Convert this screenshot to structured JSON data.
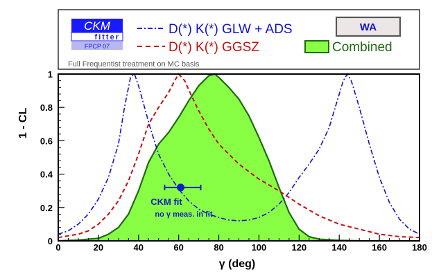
{
  "logo": {
    "line1": "CKM",
    "line2": "fitter",
    "line3": "FPCP 07"
  },
  "legend": {
    "glw_ads": "D(*) K(*) GLW + ADS",
    "ggsz": "D(*) K(*) GGSZ",
    "combined": "Combined",
    "wa_button": "WA"
  },
  "note": "Full Frequentist treatment on MC basis",
  "annotation": {
    "fit_label": "CKM fit",
    "fit_sublabel": "no γ meas. in fit"
  },
  "colors": {
    "glw_ads": "#1010d0",
    "ggsz": "#c01010",
    "combined_fill": "#88ff44",
    "combined_line": "#1f6b10",
    "fit_point": "#1020c0",
    "logo_blue": "#1a1aff"
  },
  "chart_data": {
    "type": "line",
    "title": "",
    "xlabel": "γ   (deg)",
    "ylabel": "1 - CL",
    "xlim": [
      0,
      180
    ],
    "ylim": [
      0,
      1
    ],
    "x_ticks": [
      0,
      20,
      40,
      60,
      80,
      100,
      120,
      140,
      160,
      180
    ],
    "y_ticks": [
      0,
      0.2,
      0.4,
      0.6,
      0.8,
      1
    ],
    "x_tick_labels": [
      "0",
      "20",
      "40",
      "60",
      "80",
      "100",
      "120",
      "140",
      "160",
      "180"
    ],
    "y_tick_labels": [
      "0",
      "0.2",
      "0.4",
      "0.6",
      "0.8",
      "1"
    ],
    "series": [
      {
        "name": "D(*) K(*) GLW + ADS",
        "style": "dash-dot",
        "x": [
          0,
          5,
          10,
          15,
          20,
          25,
          30,
          33,
          36,
          38,
          40,
          43,
          46,
          50,
          55,
          60,
          65,
          70,
          75,
          80,
          85,
          90,
          95,
          100,
          105,
          110,
          115,
          120,
          125,
          130,
          135,
          138,
          142,
          144,
          146,
          150,
          155,
          160,
          165,
          170,
          175,
          180
        ],
        "y": [
          0.04,
          0.06,
          0.1,
          0.16,
          0.25,
          0.38,
          0.58,
          0.8,
          0.98,
          1.0,
          0.93,
          0.8,
          0.67,
          0.52,
          0.4,
          0.31,
          0.24,
          0.19,
          0.16,
          0.14,
          0.125,
          0.12,
          0.125,
          0.14,
          0.17,
          0.22,
          0.29,
          0.38,
          0.46,
          0.55,
          0.68,
          0.8,
          0.96,
          1.0,
          0.96,
          0.8,
          0.58,
          0.38,
          0.23,
          0.13,
          0.07,
          0.04
        ]
      },
      {
        "name": "D(*) K(*) GGSZ",
        "style": "dashed",
        "x": [
          0,
          10,
          15,
          20,
          25,
          30,
          35,
          40,
          45,
          50,
          55,
          58,
          60,
          63,
          66,
          70,
          75,
          80,
          90,
          100,
          110,
          120,
          130,
          140,
          150,
          160,
          170,
          180
        ],
        "y": [
          0.02,
          0.04,
          0.06,
          0.1,
          0.16,
          0.24,
          0.36,
          0.52,
          0.7,
          0.8,
          0.89,
          0.96,
          1.0,
          0.96,
          0.88,
          0.78,
          0.67,
          0.58,
          0.46,
          0.37,
          0.3,
          0.22,
          0.15,
          0.1,
          0.07,
          0.04,
          0.025,
          0.02
        ]
      },
      {
        "name": "Combined",
        "style": "filled",
        "x": [
          0,
          10,
          20,
          25,
          30,
          35,
          40,
          45,
          50,
          55,
          60,
          65,
          70,
          75,
          78,
          80,
          85,
          90,
          95,
          100,
          105,
          110,
          115,
          120,
          125,
          130,
          140,
          150,
          160,
          170,
          180
        ],
        "y": [
          0,
          0.005,
          0.015,
          0.04,
          0.08,
          0.16,
          0.3,
          0.47,
          0.58,
          0.65,
          0.74,
          0.84,
          0.93,
          0.99,
          1.0,
          0.98,
          0.92,
          0.85,
          0.75,
          0.62,
          0.48,
          0.32,
          0.17,
          0.07,
          0.025,
          0.01,
          0.003,
          0,
          0,
          0,
          0
        ]
      }
    ],
    "fit_point": {
      "x": 61,
      "y": 0.32,
      "x_err_low": 53,
      "x_err_high": 71
    }
  }
}
